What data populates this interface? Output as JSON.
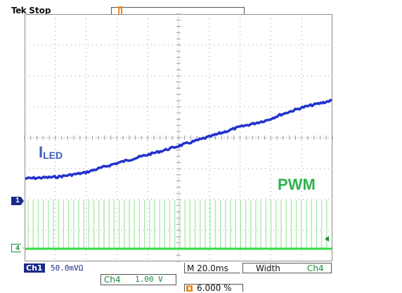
{
  "status": {
    "brand": "Tek",
    "state": "Stop"
  },
  "labels": {
    "iled_main": "I",
    "iled_sub": "LED",
    "pwm": "PWM"
  },
  "markers": {
    "ch1": "1",
    "ch4": "4"
  },
  "readouts": {
    "ch1_tag": "Ch1",
    "ch1_scale": "50.0mVΩ",
    "timebase": "M 20.0ms",
    "measure_name": "Width",
    "measure_source": "Ch4",
    "ch4_name": "Ch4",
    "ch4_scale": "1.00 V",
    "trigger_position": "6.000 %"
  },
  "colors": {
    "iled_trace": "#2233cc",
    "pwm_trace": "#33dd44",
    "pwm_pulses": "#a6e8a6",
    "grid": "#9a9a9a",
    "ch1_badge": "#1a2a8a",
    "trigger_orange": "#e88a1a"
  },
  "icons": {
    "trigger_position": "orange-trigger-icon",
    "ch1_marker": "ch1-ground-arrow-icon",
    "ch4_marker": "ch4-ground-arrow-icon",
    "trigger_level": "trigger-level-arrow-icon"
  }
}
